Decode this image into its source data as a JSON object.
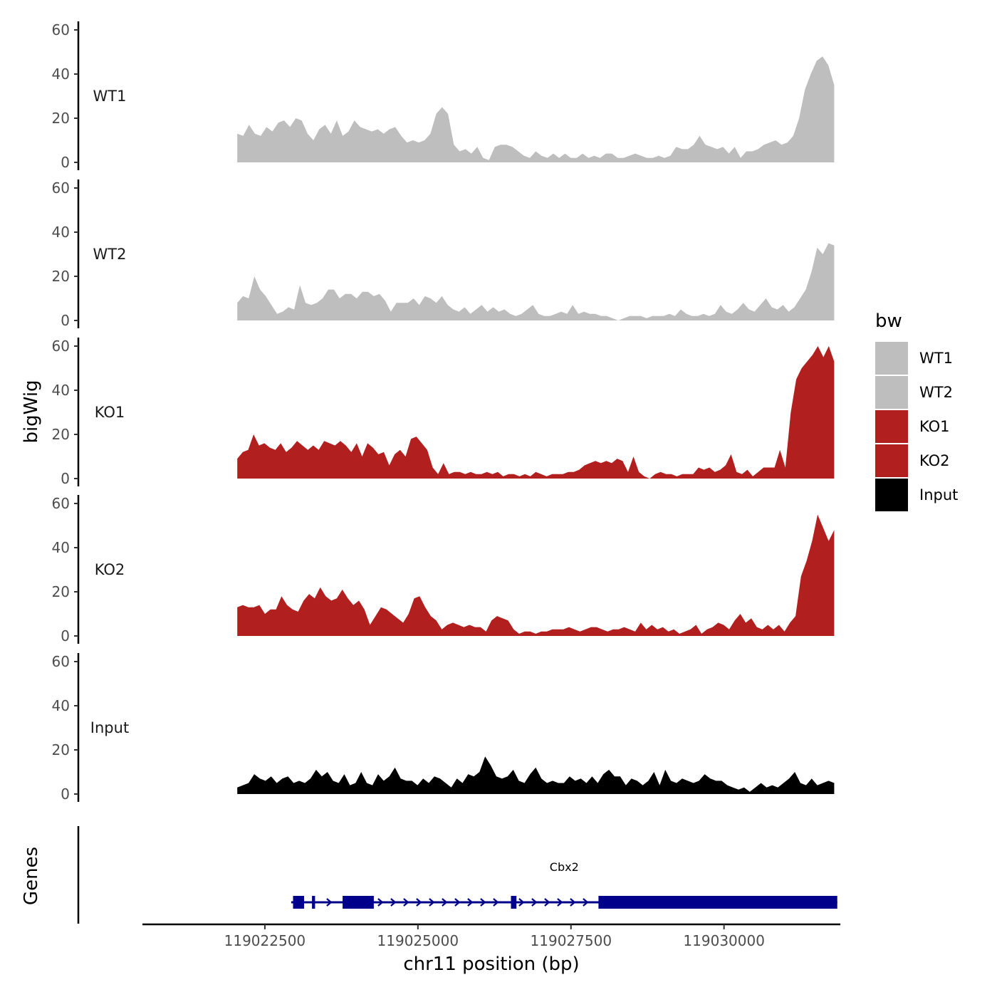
{
  "chart_data": {
    "type": "area",
    "ylabel": "bigWig",
    "xlabel": "chr11 position (bp)",
    "ylim": [
      0,
      60
    ],
    "yticks": [
      0,
      20,
      40,
      60
    ],
    "xlim": [
      119020500,
      119031900
    ],
    "xticks": [
      119022500,
      119025000,
      119027500,
      119030000
    ],
    "xtick_labels": [
      "119022500",
      "119025000",
      "119027500",
      "119030000"
    ],
    "legend": {
      "title": "bw",
      "position": "right",
      "entries": [
        {
          "label": "WT1",
          "color": "#bebebe"
        },
        {
          "label": "WT2",
          "color": "#bebebe"
        },
        {
          "label": "KO1",
          "color": "#b21f1f"
        },
        {
          "label": "KO2",
          "color": "#b21f1f"
        },
        {
          "label": "Input",
          "color": "#000000"
        }
      ]
    },
    "series": [
      {
        "name": "WT1",
        "color": "#bebebe",
        "x_start": 119022050,
        "x_end": 119031800,
        "values": [
          13,
          12,
          17,
          13,
          12,
          16,
          14,
          18,
          19,
          16,
          20,
          19,
          13,
          10,
          15,
          17,
          13,
          19,
          12,
          14,
          19,
          16,
          15,
          14,
          15,
          13,
          15,
          16,
          12,
          9,
          10,
          9,
          10,
          13,
          22,
          25,
          22,
          8,
          5,
          6,
          4,
          7,
          2,
          1,
          7,
          8,
          8,
          7,
          5,
          3,
          2,
          5,
          3,
          2,
          4,
          2,
          4,
          2,
          2,
          4,
          2,
          3,
          2,
          4,
          4,
          2,
          2,
          3,
          4,
          3,
          2,
          2,
          3,
          2,
          3,
          7,
          6,
          6,
          8,
          12,
          8,
          7,
          6,
          7,
          4,
          7,
          2,
          5,
          5,
          6,
          8,
          9,
          10,
          8,
          9,
          12,
          20,
          33,
          40,
          46,
          48,
          44,
          35
        ]
      },
      {
        "name": "WT2",
        "color": "#bebebe",
        "x_start": 119022050,
        "x_end": 119031800,
        "values": [
          8,
          11,
          10,
          20,
          14,
          11,
          7,
          3,
          4,
          6,
          5,
          16,
          8,
          7,
          8,
          10,
          14,
          14,
          10,
          12,
          12,
          10,
          13,
          13,
          11,
          12,
          9,
          4,
          8,
          8,
          8,
          10,
          7,
          11,
          10,
          8,
          11,
          7,
          5,
          4,
          6,
          3,
          5,
          7,
          4,
          6,
          4,
          5,
          3,
          2,
          3,
          5,
          7,
          3,
          2,
          2,
          3,
          4,
          3,
          7,
          3,
          4,
          3,
          3,
          2,
          2,
          1,
          0,
          1,
          2,
          2,
          2,
          1,
          2,
          2,
          2,
          3,
          2,
          5,
          3,
          2,
          2,
          3,
          2,
          3,
          7,
          4,
          3,
          5,
          8,
          5,
          4,
          7,
          10,
          6,
          5,
          7,
          4,
          6,
          10,
          14,
          22,
          33,
          30,
          35,
          34
        ]
      },
      {
        "name": "KO1",
        "color": "#b21f1f",
        "x_start": 119022050,
        "x_end": 119031800,
        "values": [
          9,
          12,
          13,
          20,
          15,
          16,
          14,
          13,
          16,
          12,
          14,
          17,
          15,
          13,
          15,
          13,
          17,
          16,
          15,
          17,
          15,
          12,
          16,
          10,
          16,
          14,
          11,
          12,
          6,
          11,
          13,
          10,
          18,
          19,
          16,
          13,
          5,
          2,
          7,
          2,
          3,
          3,
          2,
          3,
          2,
          2,
          3,
          2,
          3,
          1,
          2,
          2,
          1,
          2,
          1,
          3,
          2,
          1,
          2,
          2,
          2,
          3,
          3,
          4,
          6,
          7,
          8,
          7,
          8,
          7,
          9,
          8,
          3,
          10,
          3,
          1,
          0,
          2,
          3,
          2,
          2,
          1,
          2,
          2,
          2,
          5,
          4,
          5,
          3,
          4,
          6,
          11,
          3,
          2,
          4,
          1,
          3,
          5,
          5,
          5,
          13,
          5,
          30,
          45,
          50,
          53,
          56,
          60,
          55,
          60,
          53
        ]
      },
      {
        "name": "KO2",
        "color": "#b21f1f",
        "x_start": 119022050,
        "x_end": 119031800,
        "values": [
          13,
          14,
          13,
          13,
          14,
          10,
          12,
          12,
          18,
          14,
          12,
          11,
          16,
          19,
          17,
          22,
          18,
          16,
          17,
          21,
          17,
          14,
          16,
          12,
          5,
          9,
          13,
          12,
          10,
          8,
          6,
          10,
          17,
          18,
          13,
          9,
          7,
          3,
          5,
          6,
          5,
          4,
          5,
          4,
          4,
          2,
          7,
          9,
          8,
          7,
          3,
          1,
          2,
          2,
          1,
          2,
          2,
          3,
          3,
          3,
          4,
          3,
          2,
          3,
          4,
          4,
          3,
          2,
          3,
          3,
          4,
          3,
          2,
          6,
          3,
          5,
          3,
          4,
          2,
          3,
          1,
          2,
          3,
          5,
          1,
          3,
          4,
          6,
          5,
          3,
          7,
          10,
          6,
          8,
          4,
          3,
          5,
          3,
          5,
          2,
          6,
          9,
          27,
          34,
          43,
          55,
          49,
          43,
          48
        ]
      },
      {
        "name": "Input",
        "color": "#000000",
        "x_start": 119022050,
        "x_end": 119031800,
        "values": [
          3,
          4,
          5,
          9,
          7,
          6,
          8,
          5,
          7,
          8,
          5,
          6,
          5,
          7,
          11,
          8,
          10,
          6,
          5,
          9,
          4,
          5,
          10,
          5,
          4,
          9,
          6,
          8,
          12,
          7,
          6,
          6,
          4,
          7,
          5,
          8,
          7,
          5,
          3,
          7,
          5,
          9,
          8,
          10,
          17,
          13,
          8,
          7,
          8,
          11,
          6,
          5,
          9,
          12,
          7,
          5,
          6,
          5,
          5,
          8,
          6,
          7,
          5,
          8,
          5,
          9,
          11,
          8,
          8,
          4,
          7,
          6,
          4,
          6,
          10,
          4,
          11,
          6,
          5,
          7,
          6,
          5,
          6,
          9,
          7,
          6,
          6,
          4,
          3,
          2,
          3,
          1,
          3,
          5,
          3,
          4,
          3,
          5,
          7,
          10,
          5,
          4,
          7,
          4,
          5,
          6,
          5
        ]
      }
    ],
    "genes_track": {
      "label": "Genes",
      "gene_name": "Cbx2",
      "strand": "+",
      "color": "#00008b",
      "start": 119022930,
      "end": 119031850,
      "exons": [
        {
          "start": 119022960,
          "end": 119023140
        },
        {
          "start": 119023270,
          "end": 119023320
        },
        {
          "start": 119023770,
          "end": 119024280
        },
        {
          "start": 119026520,
          "end": 119026610
        },
        {
          "start": 119027950,
          "end": 119031850
        }
      ]
    }
  }
}
